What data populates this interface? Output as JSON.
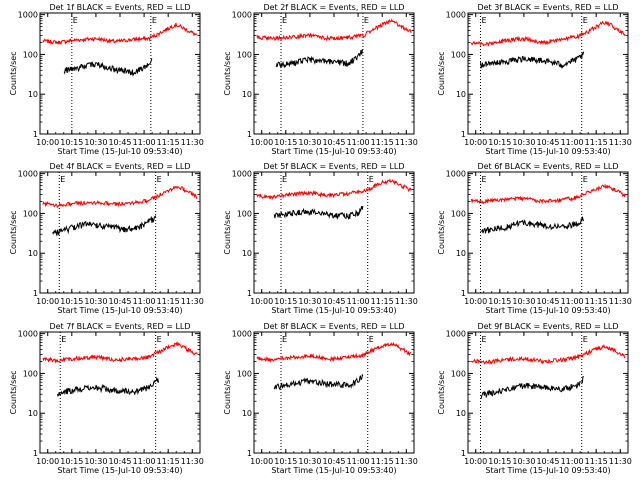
{
  "chart_data": [
    {
      "type": "line",
      "title": "Det 1f BLACK = Events, RED = LLD",
      "xlabel": "Start Time (15-Jul-10 09:53:40)",
      "ylabel": "Counts/sec",
      "yscale": "log",
      "ylim": [
        1,
        1100
      ],
      "xlim": [
        9.92,
        11.58
      ],
      "x_ticks": [
        "10:00",
        "10:15",
        "10:30",
        "10:45",
        "11:00",
        "11:15",
        "11:30"
      ],
      "y_ticks": [
        "1",
        "10",
        "100",
        "1000"
      ],
      "vlines": [
        10.25,
        11.07
      ],
      "marker_labels": [
        "E",
        "E"
      ],
      "series": [
        {
          "color": "#ff0000",
          "x": [
            9.95,
            10.1,
            10.3,
            10.5,
            10.7,
            10.9,
            11.05,
            11.15,
            11.25,
            11.33,
            11.45,
            11.55
          ],
          "y": [
            220,
            200,
            230,
            250,
            210,
            240,
            250,
            330,
            450,
            560,
            400,
            300
          ]
        },
        {
          "color": "#000000",
          "x": [
            10.17,
            10.3,
            10.5,
            10.7,
            10.9,
            11.05,
            11.08
          ],
          "y": [
            40,
            45,
            58,
            42,
            35,
            55,
            70
          ]
        }
      ]
    },
    {
      "type": "line",
      "title": "Det 2f BLACK = Events, RED = LLD",
      "xlabel": "Start Time (15-Jul-10 09:53:40)",
      "ylabel": "Counts/sec",
      "yscale": "log",
      "ylim": [
        1,
        1100
      ],
      "xlim": [
        9.92,
        11.58
      ],
      "x_ticks": [
        "10:00",
        "10:15",
        "10:30",
        "10:45",
        "11:00",
        "11:15",
        "11:30"
      ],
      "y_ticks": [
        "1",
        "10",
        "100",
        "1000"
      ],
      "vlines": [
        10.2,
        11.05
      ],
      "marker_labels": [
        "E",
        "E"
      ],
      "series": [
        {
          "color": "#ff0000",
          "x": [
            9.95,
            10.1,
            10.3,
            10.5,
            10.7,
            10.9,
            11.05,
            11.15,
            11.25,
            11.35,
            11.45,
            11.55
          ],
          "y": [
            270,
            250,
            270,
            300,
            250,
            270,
            300,
            400,
            560,
            700,
            500,
            370
          ]
        },
        {
          "color": "#000000",
          "x": [
            10.15,
            10.3,
            10.5,
            10.7,
            10.9,
            11.0,
            11.05
          ],
          "y": [
            55,
            60,
            75,
            65,
            60,
            85,
            130
          ]
        }
      ]
    },
    {
      "type": "line",
      "title": "Det 3f BLACK = Events, RED = LLD",
      "xlabel": "Start Time (15-Jul-10 09:53:40)",
      "ylabel": "Counts/sec",
      "yscale": "log",
      "ylim": [
        1,
        1100
      ],
      "xlim": [
        9.92,
        11.58
      ],
      "x_ticks": [
        "10:00",
        "10:15",
        "10:30",
        "10:45",
        "11:00",
        "11:15",
        "11:30"
      ],
      "y_ticks": [
        "1",
        "10",
        "100",
        "1000"
      ],
      "vlines": [
        10.05,
        11.1
      ],
      "marker_labels": [
        "E",
        "E"
      ],
      "series": [
        {
          "color": "#ff0000",
          "x": [
            9.95,
            10.1,
            10.3,
            10.5,
            10.7,
            10.9,
            11.05,
            11.15,
            11.25,
            11.35,
            11.45,
            11.55
          ],
          "y": [
            200,
            180,
            220,
            250,
            200,
            240,
            280,
            350,
            500,
            650,
            450,
            320
          ]
        },
        {
          "color": "#000000",
          "x": [
            10.05,
            10.3,
            10.5,
            10.7,
            10.9,
            11.05,
            11.12
          ],
          "y": [
            55,
            65,
            80,
            70,
            55,
            75,
            100
          ]
        }
      ]
    },
    {
      "type": "line",
      "title": "Det 4f BLACK = Events, RED = LLD",
      "xlabel": "Start Time (15-Jul-10 09:53:40)",
      "ylabel": "Counts/sec",
      "yscale": "log",
      "ylim": [
        1,
        1100
      ],
      "xlim": [
        9.92,
        11.58
      ],
      "x_ticks": [
        "10:00",
        "10:15",
        "10:30",
        "10:45",
        "11:00",
        "11:15",
        "11:30"
      ],
      "y_ticks": [
        "1",
        "10",
        "100",
        "1000"
      ],
      "vlines": [
        10.12,
        11.12
      ],
      "marker_labels": [
        "E",
        "E"
      ],
      "series": [
        {
          "color": "#ff0000",
          "x": [
            9.95,
            10.1,
            10.3,
            10.5,
            10.7,
            10.9,
            11.05,
            11.15,
            11.25,
            11.35,
            11.45,
            11.55
          ],
          "y": [
            180,
            160,
            180,
            190,
            170,
            190,
            210,
            280,
            380,
            480,
            350,
            260
          ]
        },
        {
          "color": "#000000",
          "x": [
            10.05,
            10.2,
            10.4,
            10.6,
            10.8,
            11.0,
            11.12
          ],
          "y": [
            30,
            40,
            55,
            48,
            40,
            50,
            80
          ]
        }
      ]
    },
    {
      "type": "line",
      "title": "Det 5f BLACK = Events, RED = LLD",
      "xlabel": "Start Time (15-Jul-10 09:53:40)",
      "ylabel": "Counts/sec",
      "yscale": "log",
      "ylim": [
        1,
        1100
      ],
      "xlim": [
        9.92,
        11.58
      ],
      "x_ticks": [
        "10:00",
        "10:15",
        "10:30",
        "10:45",
        "11:00",
        "11:15",
        "11:30"
      ],
      "y_ticks": [
        "1",
        "10",
        "100",
        "1000"
      ],
      "vlines": [
        10.2,
        11.1
      ],
      "marker_labels": [
        "E",
        "E"
      ],
      "series": [
        {
          "color": "#ff0000",
          "x": [
            9.95,
            10.1,
            10.3,
            10.5,
            10.7,
            10.9,
            11.05,
            11.15,
            11.25,
            11.35,
            11.45,
            11.55
          ],
          "y": [
            280,
            260,
            300,
            330,
            280,
            320,
            360,
            450,
            600,
            650,
            500,
            380
          ]
        },
        {
          "color": "#000000",
          "x": [
            10.13,
            10.3,
            10.5,
            10.7,
            10.9,
            11.0,
            11.05
          ],
          "y": [
            90,
            100,
            110,
            95,
            85,
            105,
            150
          ]
        }
      ]
    },
    {
      "type": "line",
      "title": "Det 6f BLACK = Events, RED = LLD",
      "xlabel": "Start Time (15-Jul-10 09:53:40)",
      "ylabel": "Counts/sec",
      "yscale": "log",
      "ylim": [
        1,
        1100
      ],
      "xlim": [
        9.92,
        11.58
      ],
      "x_ticks": [
        "10:00",
        "10:15",
        "10:30",
        "10:45",
        "11:00",
        "11:15",
        "11:30"
      ],
      "y_ticks": [
        "1",
        "10",
        "100",
        "1000"
      ],
      "vlines": [
        10.05,
        11.1
      ],
      "marker_labels": [
        "E",
        "E"
      ],
      "series": [
        {
          "color": "#ff0000",
          "x": [
            9.95,
            10.1,
            10.3,
            10.5,
            10.7,
            10.9,
            11.05,
            11.15,
            11.25,
            11.35,
            11.45,
            11.55
          ],
          "y": [
            210,
            200,
            220,
            240,
            200,
            220,
            250,
            330,
            430,
            480,
            380,
            280
          ]
        },
        {
          "color": "#000000",
          "x": [
            10.05,
            10.3,
            10.5,
            10.7,
            10.9,
            11.05,
            11.12
          ],
          "y": [
            35,
            45,
            60,
            50,
            45,
            55,
            75
          ]
        }
      ]
    },
    {
      "type": "line",
      "title": "Det 7f BLACK = Events, RED = LLD",
      "xlabel": "Start Time (15-Jul-10 09:53:40)",
      "ylabel": "Counts/sec",
      "yscale": "log",
      "ylim": [
        1,
        1100
      ],
      "xlim": [
        9.92,
        11.58
      ],
      "x_ticks": [
        "10:00",
        "10:15",
        "10:30",
        "10:45",
        "11:00",
        "11:15",
        "11:30"
      ],
      "y_ticks": [
        "1",
        "10",
        "100",
        "1000"
      ],
      "vlines": [
        10.13,
        11.12
      ],
      "marker_labels": [
        "E",
        "E"
      ],
      "series": [
        {
          "color": "#ff0000",
          "x": [
            9.95,
            10.1,
            10.3,
            10.5,
            10.7,
            10.9,
            11.05,
            11.15,
            11.25,
            11.35,
            11.45,
            11.55
          ],
          "y": [
            230,
            210,
            240,
            260,
            220,
            240,
            260,
            350,
            450,
            540,
            400,
            290
          ]
        },
        {
          "color": "#000000",
          "x": [
            10.1,
            10.3,
            10.5,
            10.7,
            10.9,
            11.05,
            11.15
          ],
          "y": [
            32,
            40,
            45,
            38,
            35,
            45,
            70
          ]
        }
      ]
    },
    {
      "type": "line",
      "title": "Det 8f BLACK = Events, RED = LLD",
      "xlabel": "Start Time (15-Jul-10 09:53:40)",
      "ylabel": "Counts/sec",
      "yscale": "log",
      "ylim": [
        1,
        1100
      ],
      "xlim": [
        9.92,
        11.58
      ],
      "x_ticks": [
        "10:00",
        "10:15",
        "10:30",
        "10:45",
        "11:00",
        "11:15",
        "11:30"
      ],
      "y_ticks": [
        "1",
        "10",
        "100",
        "1000"
      ],
      "vlines": [
        10.2,
        11.1
      ],
      "marker_labels": [
        "E",
        "E"
      ],
      "series": [
        {
          "color": "#ff0000",
          "x": [
            9.95,
            10.1,
            10.3,
            10.5,
            10.7,
            10.9,
            11.05,
            11.15,
            11.25,
            11.35,
            11.45,
            11.55
          ],
          "y": [
            240,
            220,
            250,
            280,
            230,
            260,
            290,
            380,
            500,
            570,
            420,
            300
          ]
        },
        {
          "color": "#000000",
          "x": [
            10.13,
            10.3,
            10.5,
            10.7,
            10.9,
            11.0,
            11.05
          ],
          "y": [
            45,
            55,
            65,
            55,
            50,
            65,
            95
          ]
        }
      ]
    },
    {
      "type": "line",
      "title": "Det 9f BLACK = Events, RED = LLD",
      "xlabel": "Start Time (15-Jul-10 09:53:40)",
      "ylabel": "Counts/sec",
      "yscale": "log",
      "ylim": [
        1,
        1100
      ],
      "xlim": [
        9.92,
        11.58
      ],
      "x_ticks": [
        "10:00",
        "10:15",
        "10:30",
        "10:45",
        "11:00",
        "11:15",
        "11:30"
      ],
      "y_ticks": [
        "1",
        "10",
        "100",
        "1000"
      ],
      "vlines": [
        10.05,
        11.1
      ],
      "marker_labels": [
        "E",
        "E"
      ],
      "series": [
        {
          "color": "#ff0000",
          "x": [
            9.95,
            10.1,
            10.3,
            10.5,
            10.7,
            10.9,
            11.05,
            11.15,
            11.25,
            11.35,
            11.45,
            11.55
          ],
          "y": [
            210,
            190,
            220,
            240,
            200,
            220,
            250,
            320,
            420,
            470,
            360,
            270
          ]
        },
        {
          "color": "#000000",
          "x": [
            10.05,
            10.3,
            10.5,
            10.7,
            10.9,
            11.05,
            11.12
          ],
          "y": [
            28,
            38,
            50,
            45,
            40,
            50,
            75
          ]
        }
      ]
    }
  ]
}
